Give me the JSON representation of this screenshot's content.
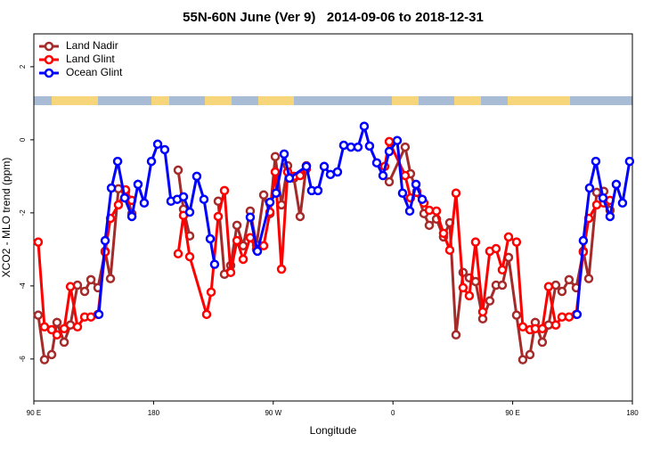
{
  "chart_data": {
    "type": "line",
    "title": "55N-60N June (Ver 9)   2014-09-06 to 2018-12-31",
    "xlabel": "Longitude",
    "ylabel": "XCO2 - MLO trend (ppm)",
    "xlim": [
      90,
      540
    ],
    "ylim": [
      -7.15,
      2.9
    ],
    "xticks": [
      {
        "value": 90,
        "label": "90 E"
      },
      180,
      {
        "value": 270,
        "label": "90 W"
      },
      {
        "value": 360,
        "label": "0"
      },
      {
        "value": 450,
        "label": "90 E"
      },
      {
        "value": 540,
        "label": "180"
      }
    ],
    "yticks": [
      -6,
      -4,
      -2,
      0,
      2
    ],
    "legend": "top-left",
    "series": [
      {
        "name": "Land Nadir",
        "color": "#a52a2a",
        "x": [
          93.3,
          98.0,
          103.4,
          107.4,
          112.8,
          117.5,
          122.8,
          128.2,
          132.9,
          138.2,
          143.6,
          147.6,
          153.6,
          159.0,
          163.7,
          180,
          198.5,
          202.5,
          207.2,
          218,
          228.6,
          233.3,
          238.0,
          242.7,
          247.4,
          252.7,
          257.4,
          262.8,
          267.5,
          271.5,
          276.2,
          280.8,
          285.5,
          290.2,
          294.9,
          320,
          357.2,
          369.2,
          373.2,
          377.9,
          383.3,
          387.3,
          392.7,
          398.0,
          402.7,
          407.4,
          412.7,
          417.4,
          422.1,
          427.5,
          432.8,
          437.5,
          442.2,
          446.9,
          452.9,
          457.6,
          463.0,
          467.0,
          472.3,
          477.0,
          482.4,
          487.1,
          492.4,
          497.8,
          503.1,
          507.2,
          513.2,
          518.5,
          523.2
        ],
        "values": [
          -4.8,
          -6.02,
          -5.88,
          -5.0,
          -5.54,
          -5.07,
          -3.98,
          -4.15,
          -3.83,
          -4.05,
          -3.05,
          -3.8,
          -1.34,
          -1.41,
          -2.02,
          null,
          -0.83,
          -1.9,
          -2.63,
          null,
          -1.68,
          -3.68,
          -3.44,
          -2.34,
          -2.9,
          -1.95,
          -2.88,
          -1.51,
          -2.02,
          -0.46,
          -1.78,
          -0.71,
          -1.05,
          -2.1,
          -0.71,
          null,
          -1.15,
          -0.2,
          -0.93,
          -1.41,
          -2.02,
          -2.34,
          -2.17,
          -2.66,
          -2.27,
          -5.34,
          -3.63,
          -3.78,
          -3.88,
          -4.9,
          -4.41,
          -3.98,
          -3.98,
          -3.22,
          -4.8,
          -6.02,
          -5.88,
          -5.0,
          -5.54,
          -5.07,
          -3.98,
          -4.15,
          -3.83,
          -4.05,
          -3.05,
          -3.8,
          -1.44,
          -1.41,
          -1.93
        ]
      },
      {
        "name": "Land Glint",
        "color": "#ff0000",
        "x": [
          93.3,
          98.0,
          103.4,
          107.4,
          112.8,
          117.5,
          122.8,
          128.2,
          132.9,
          138.2,
          143.6,
          147.6,
          153.6,
          159.0,
          163.7,
          180,
          198.5,
          202.5,
          207.2,
          219.9,
          223.3,
          228.6,
          233.3,
          238.0,
          242.7,
          247.4,
          252.7,
          257.4,
          262.8,
          267.5,
          271.5,
          276.2,
          280.8,
          285.5,
          290.2,
          294.9,
          320,
          353.8,
          357.2,
          369.2,
          373.2,
          377.9,
          383.3,
          387.3,
          392.7,
          398.0,
          402.7,
          407.4,
          412.7,
          417.4,
          422.1,
          427.5,
          432.8,
          437.5,
          442.2,
          446.9,
          452.9,
          457.6,
          463.0,
          467.0,
          472.3,
          477.0,
          482.4,
          487.1,
          492.4,
          497.8,
          503.1,
          507.2,
          513.2,
          518.5,
          523.2
        ],
        "values": [
          -2.8,
          -5.12,
          -5.2,
          -5.34,
          -5.17,
          -4.02,
          -5.12,
          -4.85,
          -4.85,
          -4.78,
          -3.07,
          -2.15,
          -1.78,
          -1.37,
          -1.66,
          null,
          -3.12,
          -2.07,
          -3.2,
          -4.78,
          -4.17,
          -2.1,
          -1.39,
          -3.63,
          -2.76,
          -3.27,
          -2.68,
          -3.0,
          -2.9,
          -1.98,
          -0.88,
          -3.54,
          -0.88,
          -1.0,
          -0.98,
          -0.8,
          null,
          -0.73,
          -0.05,
          -0.98,
          -1.59,
          -1.44,
          -1.73,
          -1.93,
          -1.95,
          -2.56,
          -3.02,
          -1.46,
          -4.05,
          -4.27,
          -2.8,
          -4.71,
          -3.05,
          -2.98,
          -3.56,
          -2.66,
          -2.8,
          -5.12,
          -5.2,
          -5.17,
          -5.17,
          -4.02,
          -5.07,
          -4.85,
          -4.85,
          -4.78,
          -3.07,
          -2.15,
          -1.78,
          -1.73,
          -1.66
        ]
      },
      {
        "name": "Ocean Glint",
        "color": "#0000ff",
        "x": [
          138.9,
          143.6,
          148.3,
          153.0,
          158.3,
          163.7,
          168.3,
          173.0,
          178.4,
          183.1,
          188.4,
          193.1,
          197.8,
          202.5,
          207.2,
          212.5,
          217.9,
          222.6,
          225.9,
          240,
          252.7,
          258.1,
          267.5,
          272.1,
          278.2,
          282.2,
          294.9,
          298.9,
          303.6,
          308.3,
          313.0,
          318.3,
          323.0,
          328.4,
          333.7,
          338.4,
          342.4,
          347.8,
          352.5,
          357.2,
          363.2,
          367.2,
          372.6,
          377.3,
          382.0,
          440,
          498.4,
          503.1,
          507.8,
          512.5,
          517.9,
          523.2,
          527.9,
          532.6,
          537.9
        ],
        "values": [
          -4.78,
          -2.76,
          -1.32,
          -0.59,
          -1.59,
          -2.1,
          -1.22,
          -1.73,
          -0.59,
          -0.12,
          -0.27,
          -1.68,
          -1.63,
          -1.56,
          -1.98,
          -1.0,
          -1.63,
          -2.71,
          -3.41,
          null,
          -2.12,
          -3.05,
          -1.71,
          -1.46,
          -0.39,
          -1.05,
          -0.73,
          -1.39,
          -1.39,
          -0.73,
          -0.95,
          -0.88,
          -0.15,
          -0.2,
          -0.2,
          0.37,
          -0.17,
          -0.63,
          -0.98,
          -0.32,
          -0.02,
          -1.46,
          -1.95,
          -1.22,
          -1.63,
          null,
          -4.78,
          -2.76,
          -1.32,
          -0.59,
          -1.59,
          -2.1,
          -1.22,
          -1.73,
          -0.59
        ]
      }
    ]
  }
}
